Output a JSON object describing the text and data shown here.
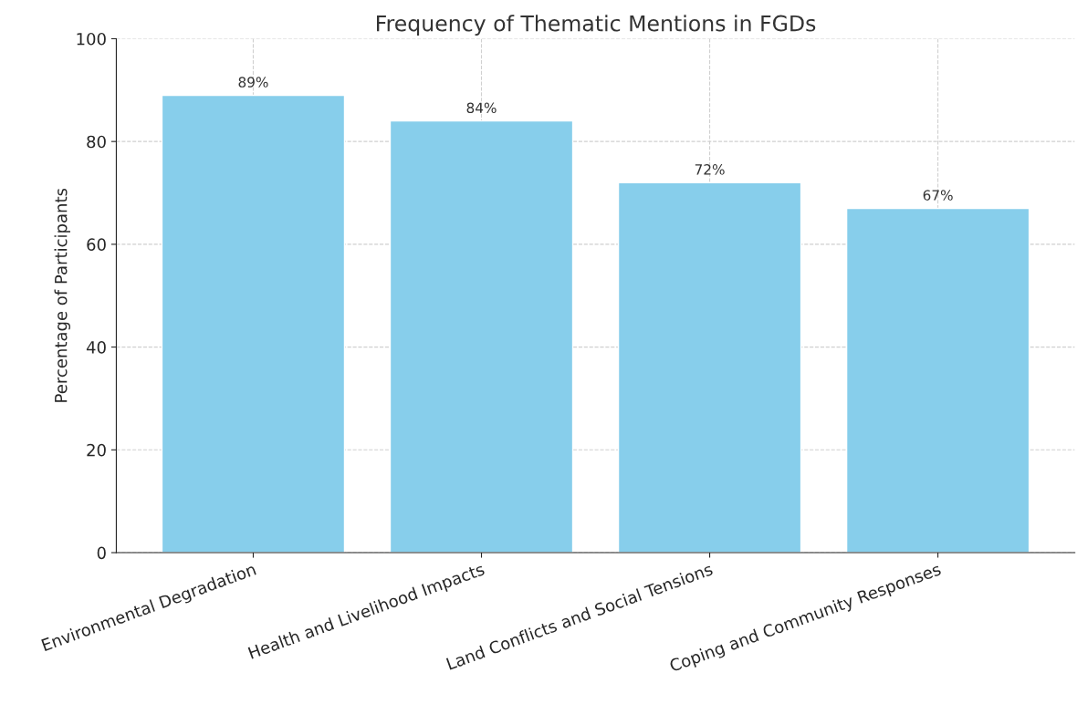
{
  "chart_data": {
    "type": "bar",
    "title": "Frequency of Thematic Mentions in FGDs",
    "ylabel": "Percentage of Participants",
    "categories": [
      "Environmental Degradation",
      "Health and Livelihood Impacts",
      "Land Conflicts and Social Tensions",
      "Coping and Community Responses"
    ],
    "values": [
      89,
      84,
      72,
      67
    ],
    "value_labels": [
      "89%",
      "84%",
      "72%",
      "67%"
    ],
    "color": "#87ceeb",
    "ylim": [
      0,
      100
    ],
    "yticks": [
      0,
      20,
      40,
      60,
      80,
      100
    ],
    "grid": true
  }
}
